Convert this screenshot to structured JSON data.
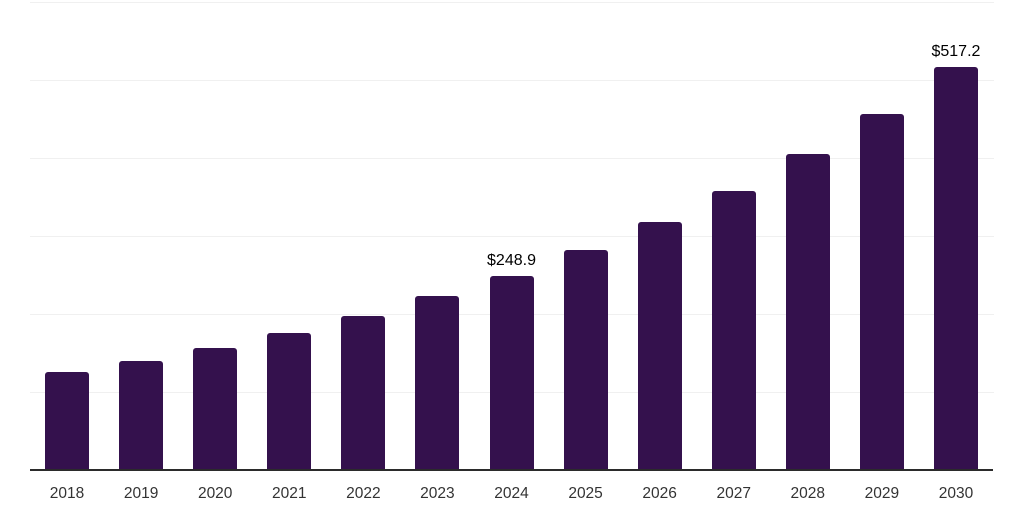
{
  "chart_data": {
    "type": "bar",
    "title": "",
    "xlabel": "",
    "ylabel": "",
    "categories": [
      "2018",
      "2019",
      "2020",
      "2021",
      "2022",
      "2023",
      "2024",
      "2025",
      "2026",
      "2027",
      "2028",
      "2029",
      "2030"
    ],
    "values": [
      125,
      140,
      156,
      176,
      198,
      223,
      248.9,
      282,
      318,
      358,
      405,
      457,
      517.2
    ],
    "data_labels": [
      "",
      "",
      "",
      "",
      "",
      "",
      "$248.9",
      "",
      "",
      "",
      "",
      "",
      "$517.2"
    ],
    "ylim": [
      0,
      600
    ],
    "gridline_interval": 100,
    "grid": "horizontal",
    "legend_position": "none",
    "colors": {
      "bar": "#34114D",
      "axis": "#2B2B2B",
      "gridline": "#F0F0F0",
      "tick_label": "#333333",
      "data_label": "#000000",
      "background": "#FFFFFF"
    }
  }
}
